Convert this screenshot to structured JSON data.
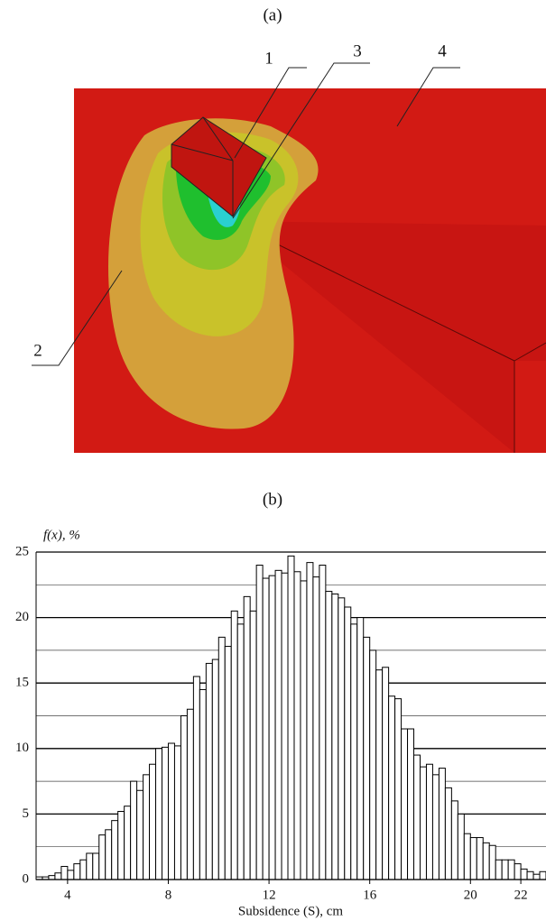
{
  "panel_a": {
    "label": "(a)",
    "callouts": [
      "1",
      "2",
      "3",
      "4"
    ]
  },
  "panel_b": {
    "label": "(b)"
  },
  "chart_data": {
    "type": "histogram",
    "y_label": "f(x), %",
    "x_label": "Subsidence (S), cm",
    "bins": [
      2.75,
      3,
      3.25,
      3.5,
      3.75,
      4,
      4.25,
      4.5,
      4.75,
      5,
      5.25,
      5.5,
      5.75,
      6,
      6.25,
      6.5,
      6.75,
      7,
      7.25,
      7.5,
      7.75,
      8,
      8.25,
      8.5,
      8.75,
      9,
      9.25,
      9.5,
      9.75,
      10,
      10.25,
      10.5,
      10.75,
      11,
      11.25,
      11.5,
      11.75,
      12,
      12.25,
      12.5,
      12.75,
      13,
      13.25,
      13.5,
      13.75,
      14,
      14.25,
      14.5,
      14.75,
      15,
      15.25,
      15.5,
      15.75,
      16,
      16.25,
      16.5,
      16.75,
      17,
      17.25,
      17.5,
      17.75,
      18,
      18.25,
      18.5,
      18.75,
      19,
      19.25,
      19.5,
      19.75,
      20,
      20.25,
      20.5,
      20.75,
      21,
      21.25,
      21.5,
      21.75,
      22,
      22.25,
      22.5,
      22.75,
      23
    ],
    "values": [
      0.2,
      0.2,
      0.3,
      0.5,
      1.0,
      0.7,
      1.2,
      1.5,
      2.0,
      2.0,
      3.4,
      3.8,
      4.5,
      5.2,
      5.6,
      7.5,
      6.8,
      8.0,
      8.8,
      10.0,
      10.1,
      10.4,
      10.2,
      12.5,
      13.0,
      15.5,
      14.5,
      16.5,
      16.8,
      18.5,
      17.8,
      20.5,
      19.5,
      21.6,
      20.5,
      24.0,
      23.0,
      23.2,
      23.6,
      23.4,
      24.7,
      23.5,
      22.8,
      24.2,
      23.1,
      24.0,
      22.0,
      21.8,
      21.5,
      20.8,
      19.5,
      20.0,
      18.5,
      17.5,
      16.0,
      16.2,
      14.0,
      13.8,
      11.5,
      11.5,
      9.5,
      8.6,
      8.8,
      8.0,
      8.5,
      7.0,
      6.0,
      5.0,
      3.5,
      3.2,
      3.2,
      2.8,
      2.6,
      1.5,
      1.5,
      1.5,
      1.2,
      0.8,
      0.6,
      0.4,
      0.6
    ],
    "color": "#ffffff",
    "xlim": [
      2.75,
      23
    ],
    "xticks": [
      4,
      8,
      12,
      16,
      20,
      22
    ],
    "ylim": [
      0,
      25
    ],
    "yticks": [
      0,
      5,
      10,
      15,
      20,
      25
    ],
    "minor_yticks": [
      2.5,
      7.5,
      12.5,
      17.5,
      22.5
    ],
    "grid": true
  }
}
